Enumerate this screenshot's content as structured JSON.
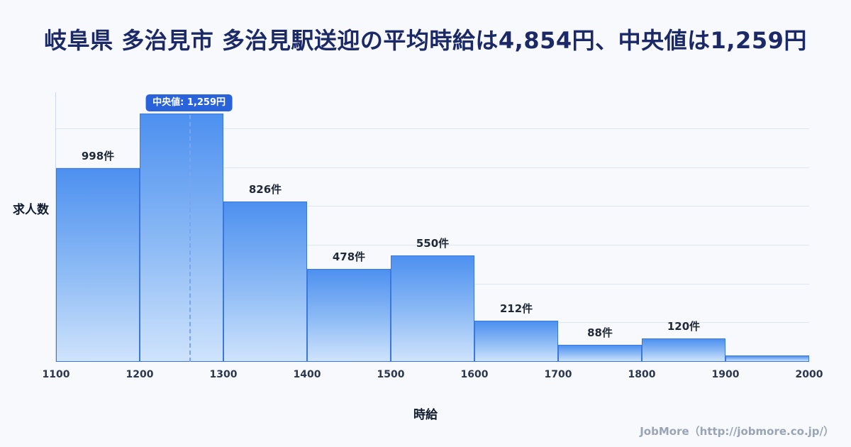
{
  "title": "岐阜県 多治見市 多治見駅送迎の平均時給は4,854円、中央値は1,259円",
  "footer": "JobMore（http://jobmore.co.jp/）",
  "chart_data": {
    "type": "bar",
    "title": "岐阜県 多治見市 多治見駅送迎の平均時給は4,854円、中央値は1,259円",
    "xlabel": "時給",
    "ylabel": "求人数",
    "x_min": 1100,
    "x_max": 2000,
    "x_ticks": [
      "1100",
      "1200",
      "1300",
      "1400",
      "1500",
      "1600",
      "1700",
      "1800",
      "1900",
      "2000"
    ],
    "ylim": [
      0,
      1390
    ],
    "grid_step": 200,
    "grid": true,
    "legend": false,
    "bins": [
      {
        "range": [
          1100,
          1200
        ],
        "count": 998,
        "label": "998件"
      },
      {
        "range": [
          1200,
          1300
        ],
        "count": 1280,
        "label": ""
      },
      {
        "range": [
          1300,
          1400
        ],
        "count": 826,
        "label": "826件"
      },
      {
        "range": [
          1400,
          1500
        ],
        "count": 478,
        "label": "478件"
      },
      {
        "range": [
          1500,
          1600
        ],
        "count": 550,
        "label": "550件"
      },
      {
        "range": [
          1600,
          1700
        ],
        "count": 212,
        "label": "212件"
      },
      {
        "range": [
          1700,
          1800
        ],
        "count": 88,
        "label": "88件"
      },
      {
        "range": [
          1800,
          1900
        ],
        "count": 120,
        "label": "120件"
      },
      {
        "range": [
          1900,
          2000
        ],
        "count": 33,
        "label": ""
      }
    ],
    "median": {
      "value": 1259,
      "label": "中央値: 1,259円"
    },
    "average_stated_in_title": 4854,
    "colors": {
      "background": "#f7f9fd",
      "title": "#1b2a66",
      "bar_top": "#4d90f0",
      "bar_bottom": "#cfe3fc",
      "bar_border": "#3a78de",
      "median_line": "#79a4f0",
      "badge_bg": "#2a63d9",
      "badge_text": "#ffffff",
      "grid": "#dde7f3"
    }
  }
}
